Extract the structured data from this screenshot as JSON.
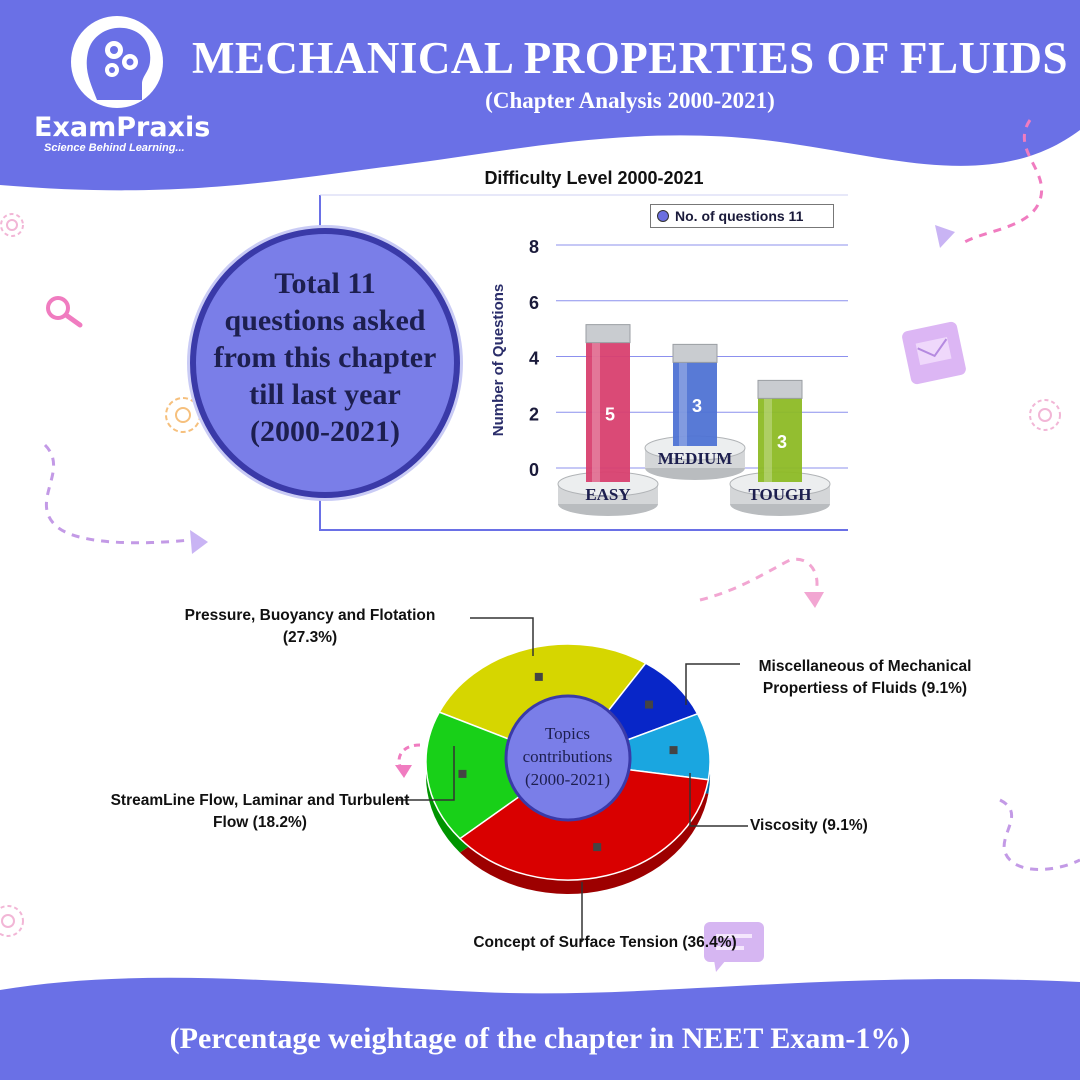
{
  "header": {
    "logo_name": "ExamPraxis",
    "logo_tagline": "Science Behind Learning...",
    "title": "MECHANICAL PROPERTIES OF FLUIDS",
    "subtitle": "(Chapter Analysis 2000-2021)"
  },
  "summary": {
    "lines": [
      "Total 11",
      "questions asked",
      "from this chapter",
      "till last year",
      "(2000-2021)"
    ]
  },
  "footer": {
    "text": "(Percentage weightage of the chapter in NEET Exam-1%)"
  },
  "colors": {
    "theme": "#6a70e6",
    "easy": "#d8406f",
    "medium": "#4f73d4",
    "tough": "#8dbb25",
    "surface_tension": "#d90000",
    "pressure": "#d6d600",
    "misc": "#0826c8",
    "viscosity": "#1aa6e0",
    "streamline": "#18d018"
  },
  "icons": [
    "brain-gears-icon",
    "gear-icon",
    "search-icon",
    "mail-icon",
    "chat-icon",
    "arrow-icon"
  ],
  "chart_data": [
    {
      "type": "bar",
      "title": "Difficulty Level 2000-2021",
      "ylabel": "Number of Questions",
      "categories": [
        "EASY",
        "MEDIUM",
        "TOUGH"
      ],
      "series": [
        {
          "name": "No. of questions 11",
          "values": [
            5,
            3,
            3
          ]
        }
      ],
      "yticks": [
        "8",
        "6",
        "4",
        "2",
        "0"
      ],
      "ylim": [
        0,
        8
      ],
      "grid": true,
      "legend": "top-right"
    },
    {
      "type": "pie",
      "center_label": [
        "Topics",
        "contributions",
        "(2000-2021)"
      ],
      "slices": [
        {
          "label": "Pressure, Buoyancy and Flotation",
          "value_label": "(27.3%)",
          "value": 27.3,
          "color": "#d6d600"
        },
        {
          "label": "Miscellaneous of Mechanical Propertiess of Fluids",
          "value_label": "(9.1%)",
          "value": 9.1,
          "color": "#0826c8"
        },
        {
          "label": "Viscosity",
          "value_label": "(9.1%)",
          "value": 9.1,
          "color": "#1aa6e0"
        },
        {
          "label": "Concept of Surface Tension",
          "value_label": "(36.4%)",
          "value": 36.4,
          "color": "#d90000"
        },
        {
          "label": "StreamLine Flow, Laminar and Turbulent Flow",
          "value_label": "(18.2%)",
          "value": 18.2,
          "color": "#18d018"
        }
      ]
    }
  ]
}
